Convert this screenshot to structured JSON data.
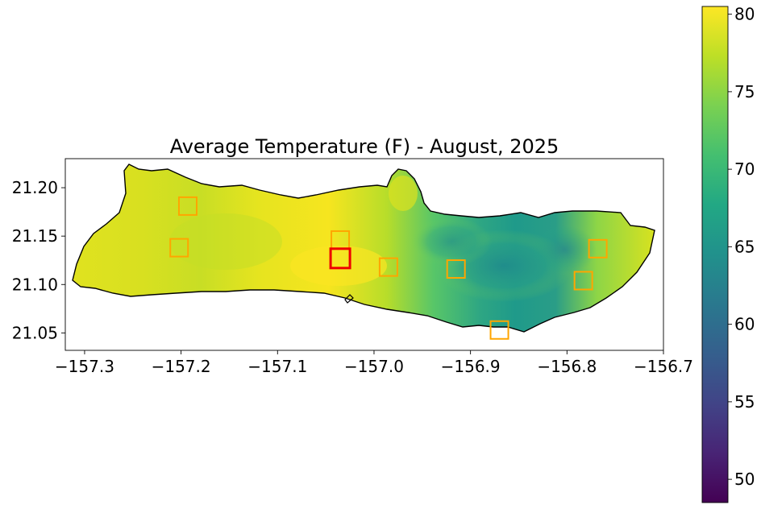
{
  "title": "Average Temperature (F) - August, 2025",
  "map": {
    "region": "Molokai",
    "x_ticks": [
      "−157.3",
      "−157.2",
      "−157.1",
      "−157.0",
      "−156.9",
      "−156.8",
      "−156.7"
    ],
    "x_tick_values": [
      -157.3,
      -157.2,
      -157.1,
      -157.0,
      -156.9,
      -156.8,
      -156.7
    ],
    "y_ticks": [
      "21.20",
      "21.15",
      "21.10",
      "21.05"
    ],
    "y_tick_values": [
      21.2,
      21.15,
      21.1,
      21.05
    ],
    "xlim": [
      -157.32,
      -156.7
    ],
    "ylim": [
      21.032,
      21.23
    ]
  },
  "colorbar": {
    "ticks": [
      "80",
      "75",
      "70",
      "65",
      "60",
      "55",
      "50"
    ],
    "tick_values": [
      80,
      75,
      70,
      65,
      60,
      55,
      50
    ],
    "range": [
      48.5,
      80.5
    ],
    "colormap": "viridis"
  },
  "stations": [
    {
      "lon": -157.193,
      "lat": 21.181,
      "color": "#ffa500",
      "selected": false
    },
    {
      "lon": -157.202,
      "lat": 21.138,
      "color": "#ffa500",
      "selected": false
    },
    {
      "lon": -157.035,
      "lat": 21.146,
      "color": "#ffa500",
      "selected": false
    },
    {
      "lon": -157.035,
      "lat": 21.127,
      "color": "#ee0000",
      "selected": true
    },
    {
      "lon": -156.985,
      "lat": 21.118,
      "color": "#ffa500",
      "selected": false
    },
    {
      "lon": -156.915,
      "lat": 21.116,
      "color": "#ffa500",
      "selected": false
    },
    {
      "lon": -156.87,
      "lat": 21.053,
      "color": "#ffa500",
      "selected": false
    },
    {
      "lon": -156.783,
      "lat": 21.104,
      "color": "#ffa500",
      "selected": false
    },
    {
      "lon": -156.768,
      "lat": 21.137,
      "color": "#ffa500",
      "selected": false
    }
  ]
}
